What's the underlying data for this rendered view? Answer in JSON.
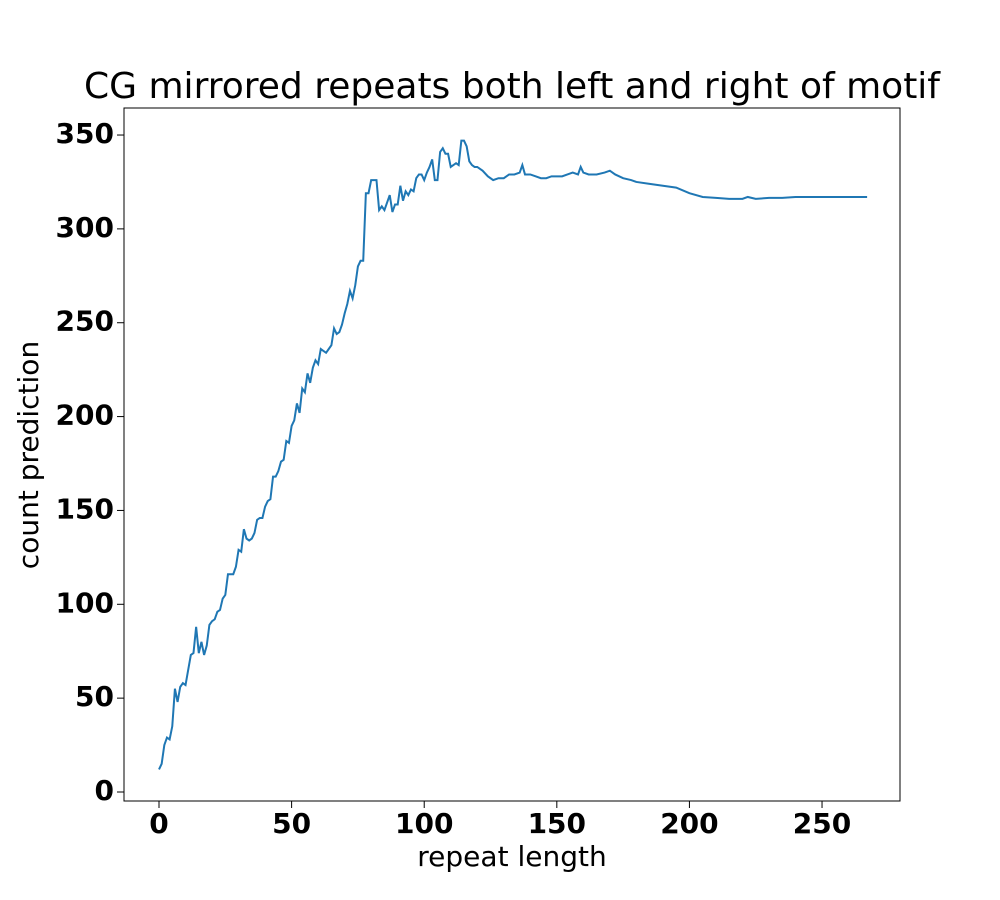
{
  "chart_data": {
    "type": "line",
    "title": "CG mirrored repeats both left and right of motif",
    "xlabel": "repeat length",
    "ylabel": "count prediction",
    "color": "#1f77b4",
    "xlim": [
      -13.2,
      279.4
    ],
    "ylim": [
      -4.8,
      364.4
    ],
    "xticks": [
      0,
      50,
      100,
      150,
      200,
      250
    ],
    "yticks": [
      0,
      50,
      100,
      150,
      200,
      250,
      300,
      350
    ],
    "x": [
      0,
      1,
      2,
      3,
      4,
      5,
      6,
      7,
      8,
      9,
      10,
      11,
      12,
      13,
      14,
      15,
      16,
      17,
      18,
      19,
      20,
      21,
      22,
      23,
      24,
      25,
      26,
      27,
      28,
      29,
      30,
      31,
      32,
      33,
      34,
      35,
      36,
      37,
      38,
      39,
      40,
      41,
      42,
      43,
      44,
      45,
      46,
      47,
      48,
      49,
      50,
      51,
      52,
      53,
      54,
      55,
      56,
      57,
      58,
      59,
      60,
      61,
      62,
      63,
      64,
      65,
      66,
      67,
      68,
      69,
      70,
      71,
      72,
      73,
      74,
      75,
      76,
      77,
      78,
      79,
      80,
      81,
      82,
      83,
      84,
      85,
      86,
      87,
      88,
      89,
      90,
      91,
      92,
      93,
      94,
      95,
      96,
      97,
      98,
      99,
      100,
      101,
      102,
      103,
      104,
      105,
      106,
      107,
      108,
      109,
      110,
      111,
      112,
      113,
      114,
      115,
      116,
      117,
      118,
      119,
      120,
      122,
      124,
      126,
      128,
      130,
      132,
      134,
      136,
      137,
      138,
      140,
      142,
      144,
      146,
      148,
      150,
      152,
      154,
      156,
      158,
      159,
      160,
      162,
      165,
      168,
      170,
      172,
      175,
      178,
      180,
      185,
      190,
      195,
      200,
      205,
      210,
      215,
      220,
      222,
      225,
      230,
      235,
      240,
      250,
      260,
      267
    ],
    "values": [
      12,
      15,
      25,
      29,
      28,
      35,
      55,
      48,
      56,
      58,
      57,
      65,
      73,
      74,
      88,
      74,
      80,
      73,
      78,
      89,
      91,
      92,
      96,
      97,
      103,
      105,
      116,
      116,
      116,
      120,
      129,
      128,
      140,
      135,
      134,
      135,
      138,
      145,
      146,
      146,
      152,
      155,
      156,
      168,
      168,
      171,
      176,
      177,
      187,
      186,
      195,
      198,
      207,
      202,
      215,
      213,
      223,
      218,
      226,
      230,
      228,
      236,
      235,
      234,
      236,
      238,
      247,
      244,
      245,
      249,
      255,
      260,
      267,
      263,
      270,
      280,
      283,
      283,
      319,
      319,
      326,
      326,
      326,
      310,
      312,
      310,
      314,
      318,
      309,
      313,
      313,
      323,
      315,
      320,
      318,
      321,
      320,
      327,
      329,
      329,
      326,
      330,
      333,
      337,
      326,
      326,
      341,
      343,
      340,
      340,
      333,
      334,
      335,
      334,
      347,
      347,
      344,
      336,
      334,
      333,
      333,
      331,
      328,
      326,
      327,
      327,
      329,
      329,
      330,
      334,
      329,
      329,
      328,
      327,
      327,
      328,
      328,
      328,
      329,
      330,
      329,
      333,
      330,
      329,
      329,
      330,
      331,
      329,
      327,
      326,
      325,
      324,
      323,
      322,
      319,
      317,
      316.5,
      316,
      316,
      317,
      316,
      316.5,
      316.5,
      317,
      317,
      317,
      317
    ]
  }
}
